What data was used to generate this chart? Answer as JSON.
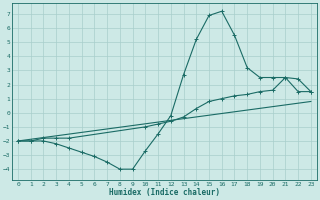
{
  "xlabel": "Humidex (Indice chaleur)",
  "xlim": [
    -0.5,
    23.5
  ],
  "ylim": [
    -4.8,
    7.8
  ],
  "xticks": [
    0,
    1,
    2,
    3,
    4,
    5,
    6,
    7,
    8,
    9,
    10,
    11,
    12,
    13,
    14,
    15,
    16,
    17,
    18,
    19,
    20,
    21,
    22,
    23
  ],
  "yticks": [
    -4,
    -3,
    -2,
    -1,
    0,
    1,
    2,
    3,
    4,
    5,
    6,
    7
  ],
  "bg_color": "#cde9e6",
  "line_color": "#1a6b65",
  "grid_color": "#a8cecc",
  "curve1_x": [
    0,
    1,
    2,
    3,
    4,
    5,
    6,
    7,
    8,
    9,
    10,
    11,
    12,
    13,
    14,
    15,
    16,
    17,
    18,
    19,
    20,
    21,
    22,
    23
  ],
  "curve1_y": [
    -2.0,
    -2.0,
    -2.0,
    -2.2,
    -2.5,
    -2.8,
    -3.1,
    -3.5,
    -4.0,
    -4.0,
    -2.7,
    -1.5,
    -0.2,
    2.7,
    5.2,
    6.9,
    7.2,
    5.5,
    3.2,
    2.5,
    2.5,
    2.5,
    1.5,
    1.5
  ],
  "curve2_x": [
    0,
    1,
    2,
    3,
    4,
    10,
    11,
    12,
    13,
    14,
    15,
    16,
    17,
    18,
    19,
    20,
    21,
    22,
    23
  ],
  "curve2_y": [
    -2.0,
    -2.0,
    -1.8,
    -1.8,
    -1.8,
    -1.0,
    -0.8,
    -0.6,
    -0.3,
    0.3,
    0.8,
    1.0,
    1.2,
    1.3,
    1.5,
    1.6,
    2.5,
    2.4,
    1.5
  ],
  "line3_x": [
    0,
    23
  ],
  "line3_y": [
    -2.0,
    0.8
  ]
}
